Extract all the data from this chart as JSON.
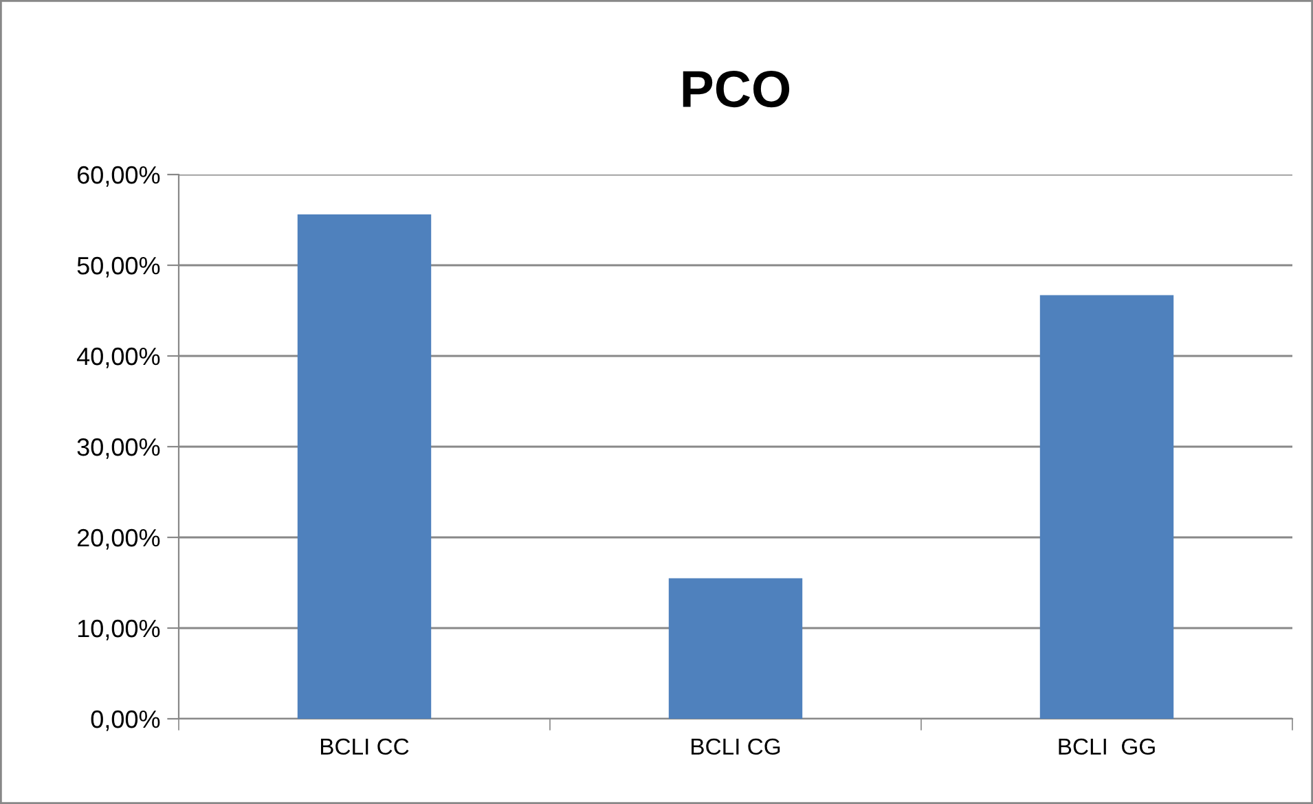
{
  "chart_data": {
    "type": "bar",
    "title": "PCO",
    "categories": [
      "BCLI CC",
      "BCLI CG",
      "BCLI  GG"
    ],
    "values": [
      55.6,
      15.5,
      46.7
    ],
    "color": "#4f81bd",
    "ylim": [
      0,
      60
    ],
    "yticks": [
      {
        "value": 0,
        "label": "0,00%"
      },
      {
        "value": 10,
        "label": "10,00%"
      },
      {
        "value": 20,
        "label": "20,00%"
      },
      {
        "value": 30,
        "label": "30,00%"
      },
      {
        "value": 40,
        "label": "40,00%"
      },
      {
        "value": 50,
        "label": "50,00%"
      },
      {
        "value": 60,
        "label": "60,00%"
      }
    ],
    "grid": "y",
    "legend": false
  }
}
